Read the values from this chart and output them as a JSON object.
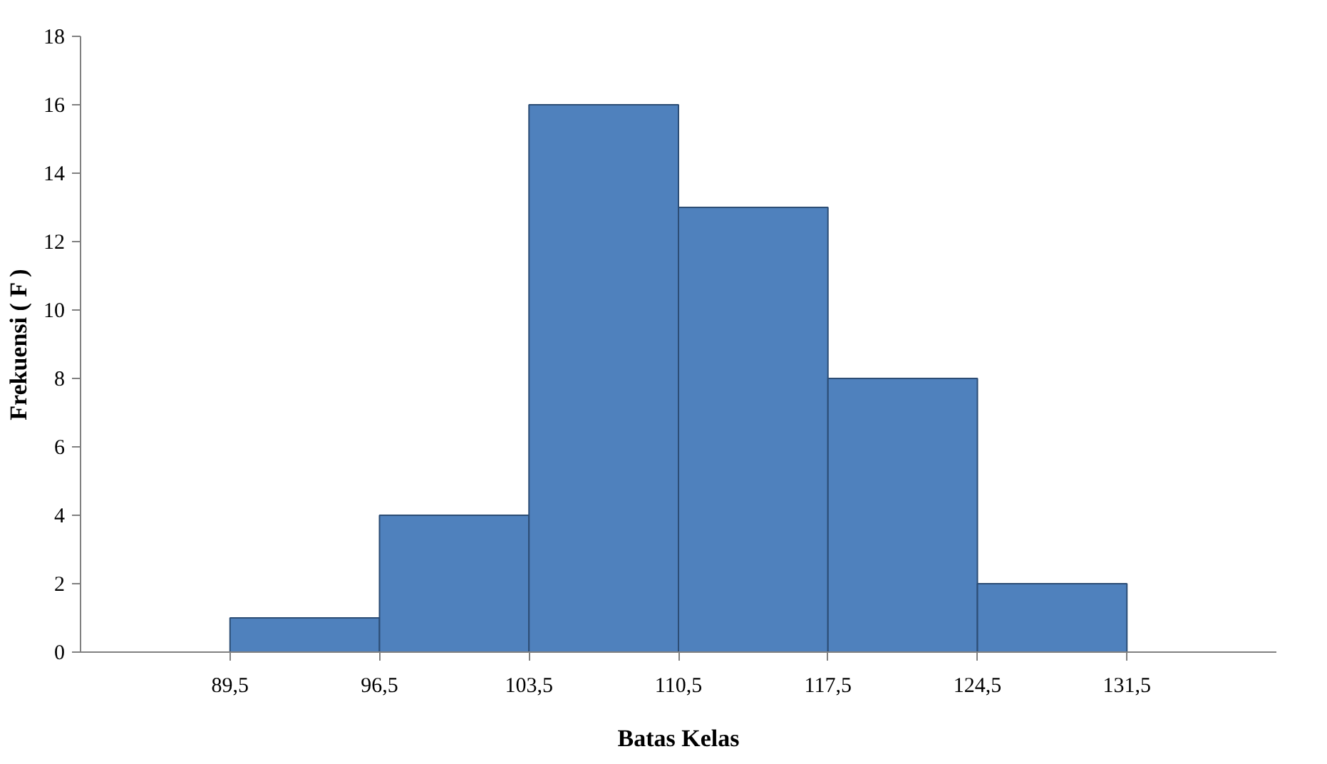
{
  "chart_data": {
    "type": "histogram",
    "xlabel": "Batas Kelas",
    "ylabel": "Frekuensi ( F )",
    "bins": [
      89.5,
      96.5,
      103.5,
      110.5,
      117.5,
      124.5,
      131.5
    ],
    "values": [
      1,
      4,
      16,
      13,
      8,
      2
    ],
    "color": "#4f81bd",
    "xlim": [
      82.5,
      138.5
    ],
    "xticks": [
      {
        "value": 89.5,
        "label": "89,5"
      },
      {
        "value": 96.5,
        "label": "96,5"
      },
      {
        "value": 103.5,
        "label": "103,5"
      },
      {
        "value": 110.5,
        "label": "110,5"
      },
      {
        "value": 117.5,
        "label": "117,5"
      },
      {
        "value": 124.5,
        "label": "124,5"
      },
      {
        "value": 131.5,
        "label": "131,5"
      }
    ],
    "ylim": [
      0,
      18
    ],
    "yticks": [
      0,
      2,
      4,
      6,
      8,
      10,
      12,
      14,
      16,
      18
    ],
    "grid": false
  }
}
